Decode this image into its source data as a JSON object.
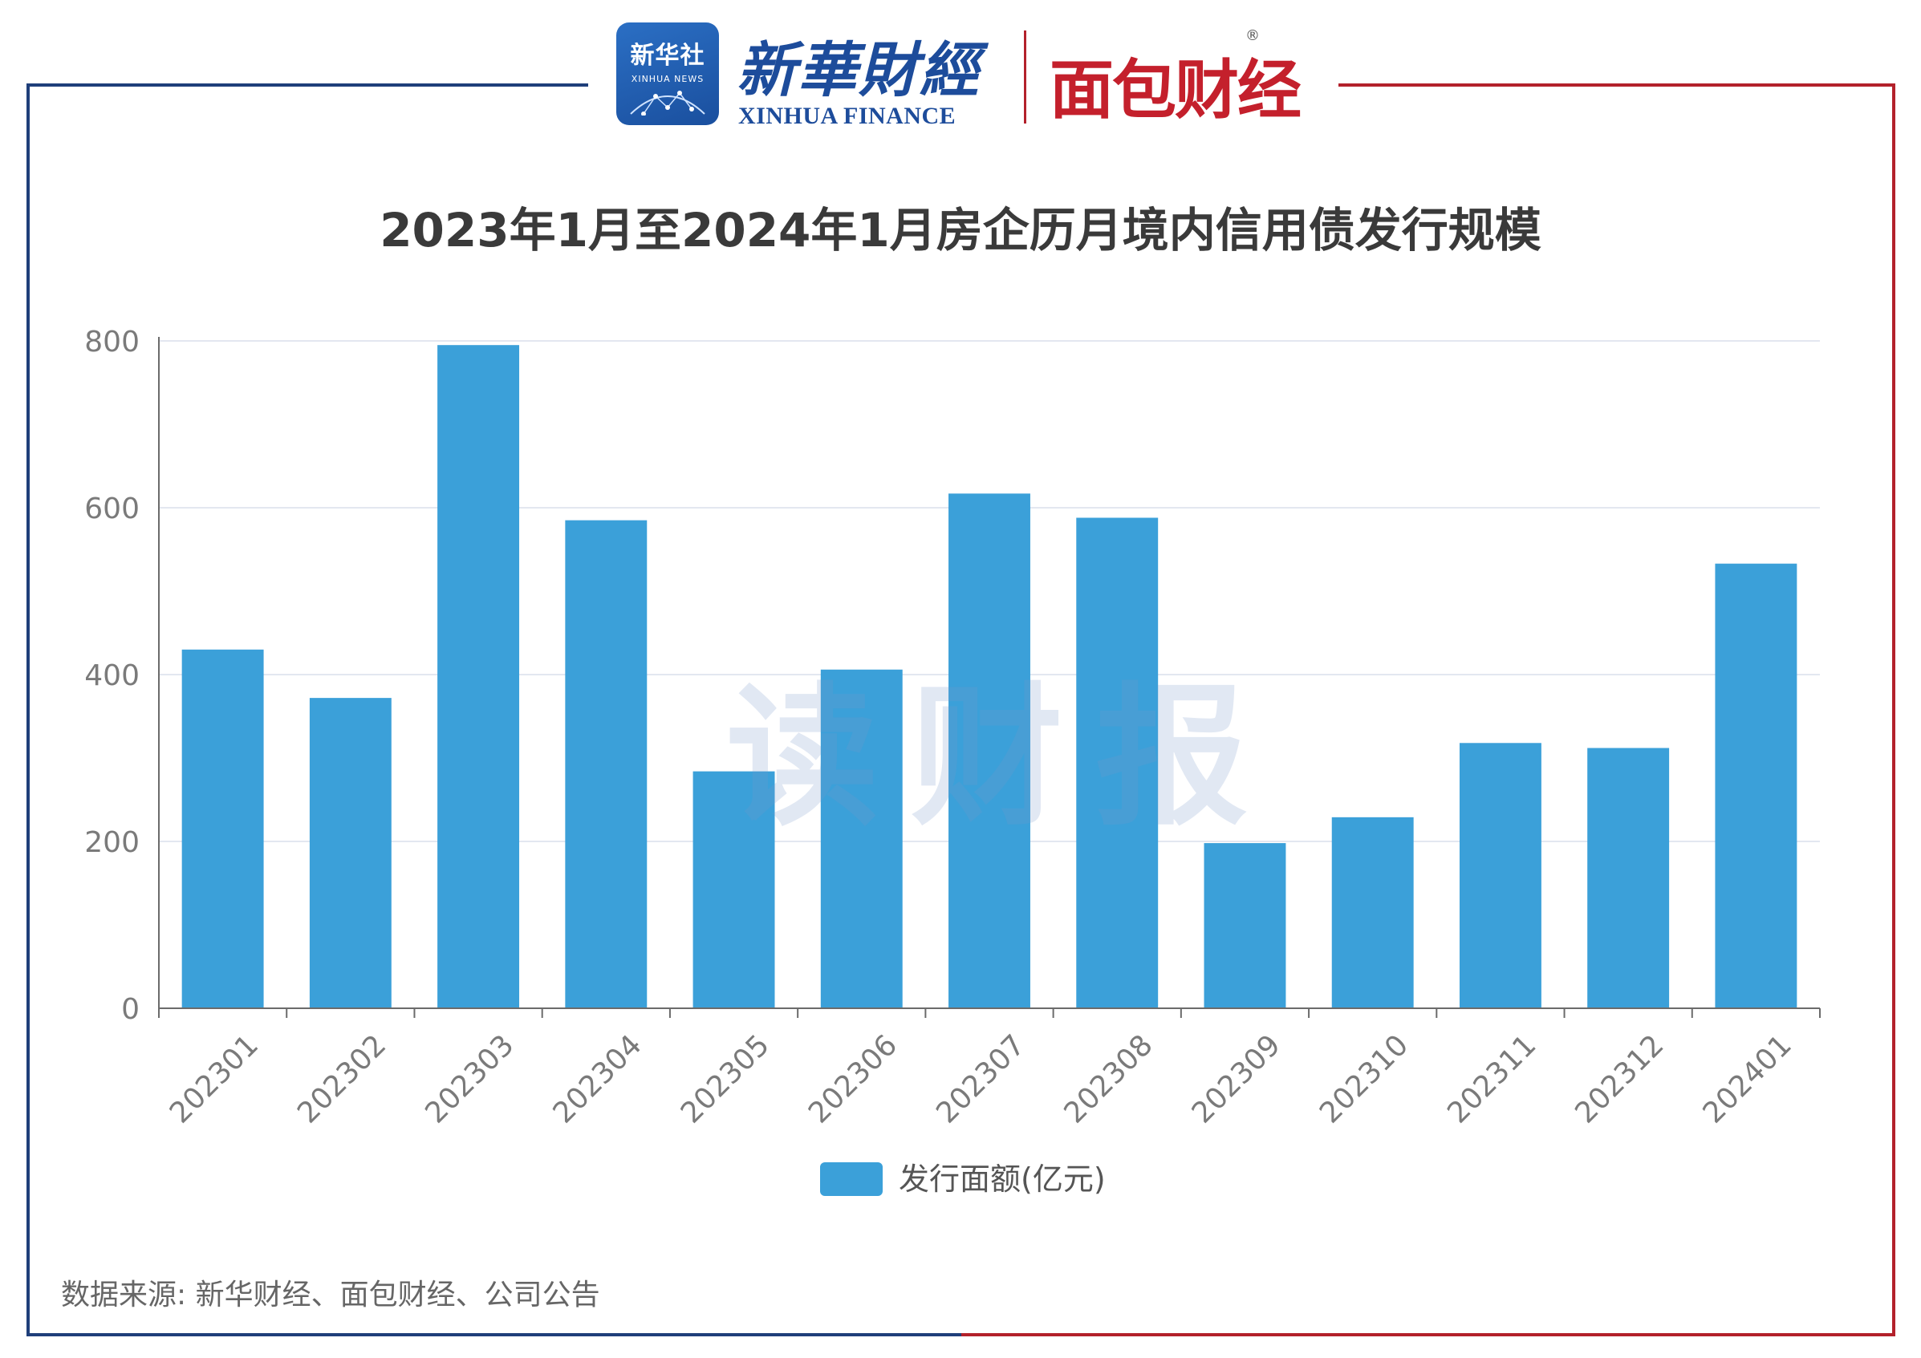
{
  "header": {
    "xinhua_badge_cn": "新华社",
    "xinhua_badge_en": "XINHUA NEWS",
    "xinhua_finance_cn": "新華財經",
    "xinhua_finance_en": "XINHUA FINANCE",
    "mianbao_brand": "面包财经",
    "registered_mark": "®"
  },
  "watermark": "读财报",
  "colors": {
    "bar": "#3ba0d9",
    "frame_blue": "#1f3f7a",
    "frame_red": "#b3212b"
  },
  "chart_data": {
    "type": "bar",
    "title": "2023年1月至2024年1月房企历月境内信用债发行规模",
    "categories": [
      "202301",
      "202302",
      "202303",
      "202304",
      "202305",
      "202306",
      "202307",
      "202308",
      "202309",
      "202310",
      "202311",
      "202312",
      "202401"
    ],
    "series": [
      {
        "name": "发行面额(亿元)",
        "values": [
          430,
          372,
          795,
          585,
          284,
          406,
          617,
          588,
          198,
          229,
          318,
          312,
          533
        ]
      }
    ],
    "yticks": [
      0,
      200,
      400,
      600,
      800
    ],
    "ylim": [
      0,
      800
    ],
    "xlabel": "",
    "ylabel": "",
    "grid": true,
    "legend_position": "bottom-center"
  },
  "source": "数据来源: 新华财经、面包财经、公司公告"
}
